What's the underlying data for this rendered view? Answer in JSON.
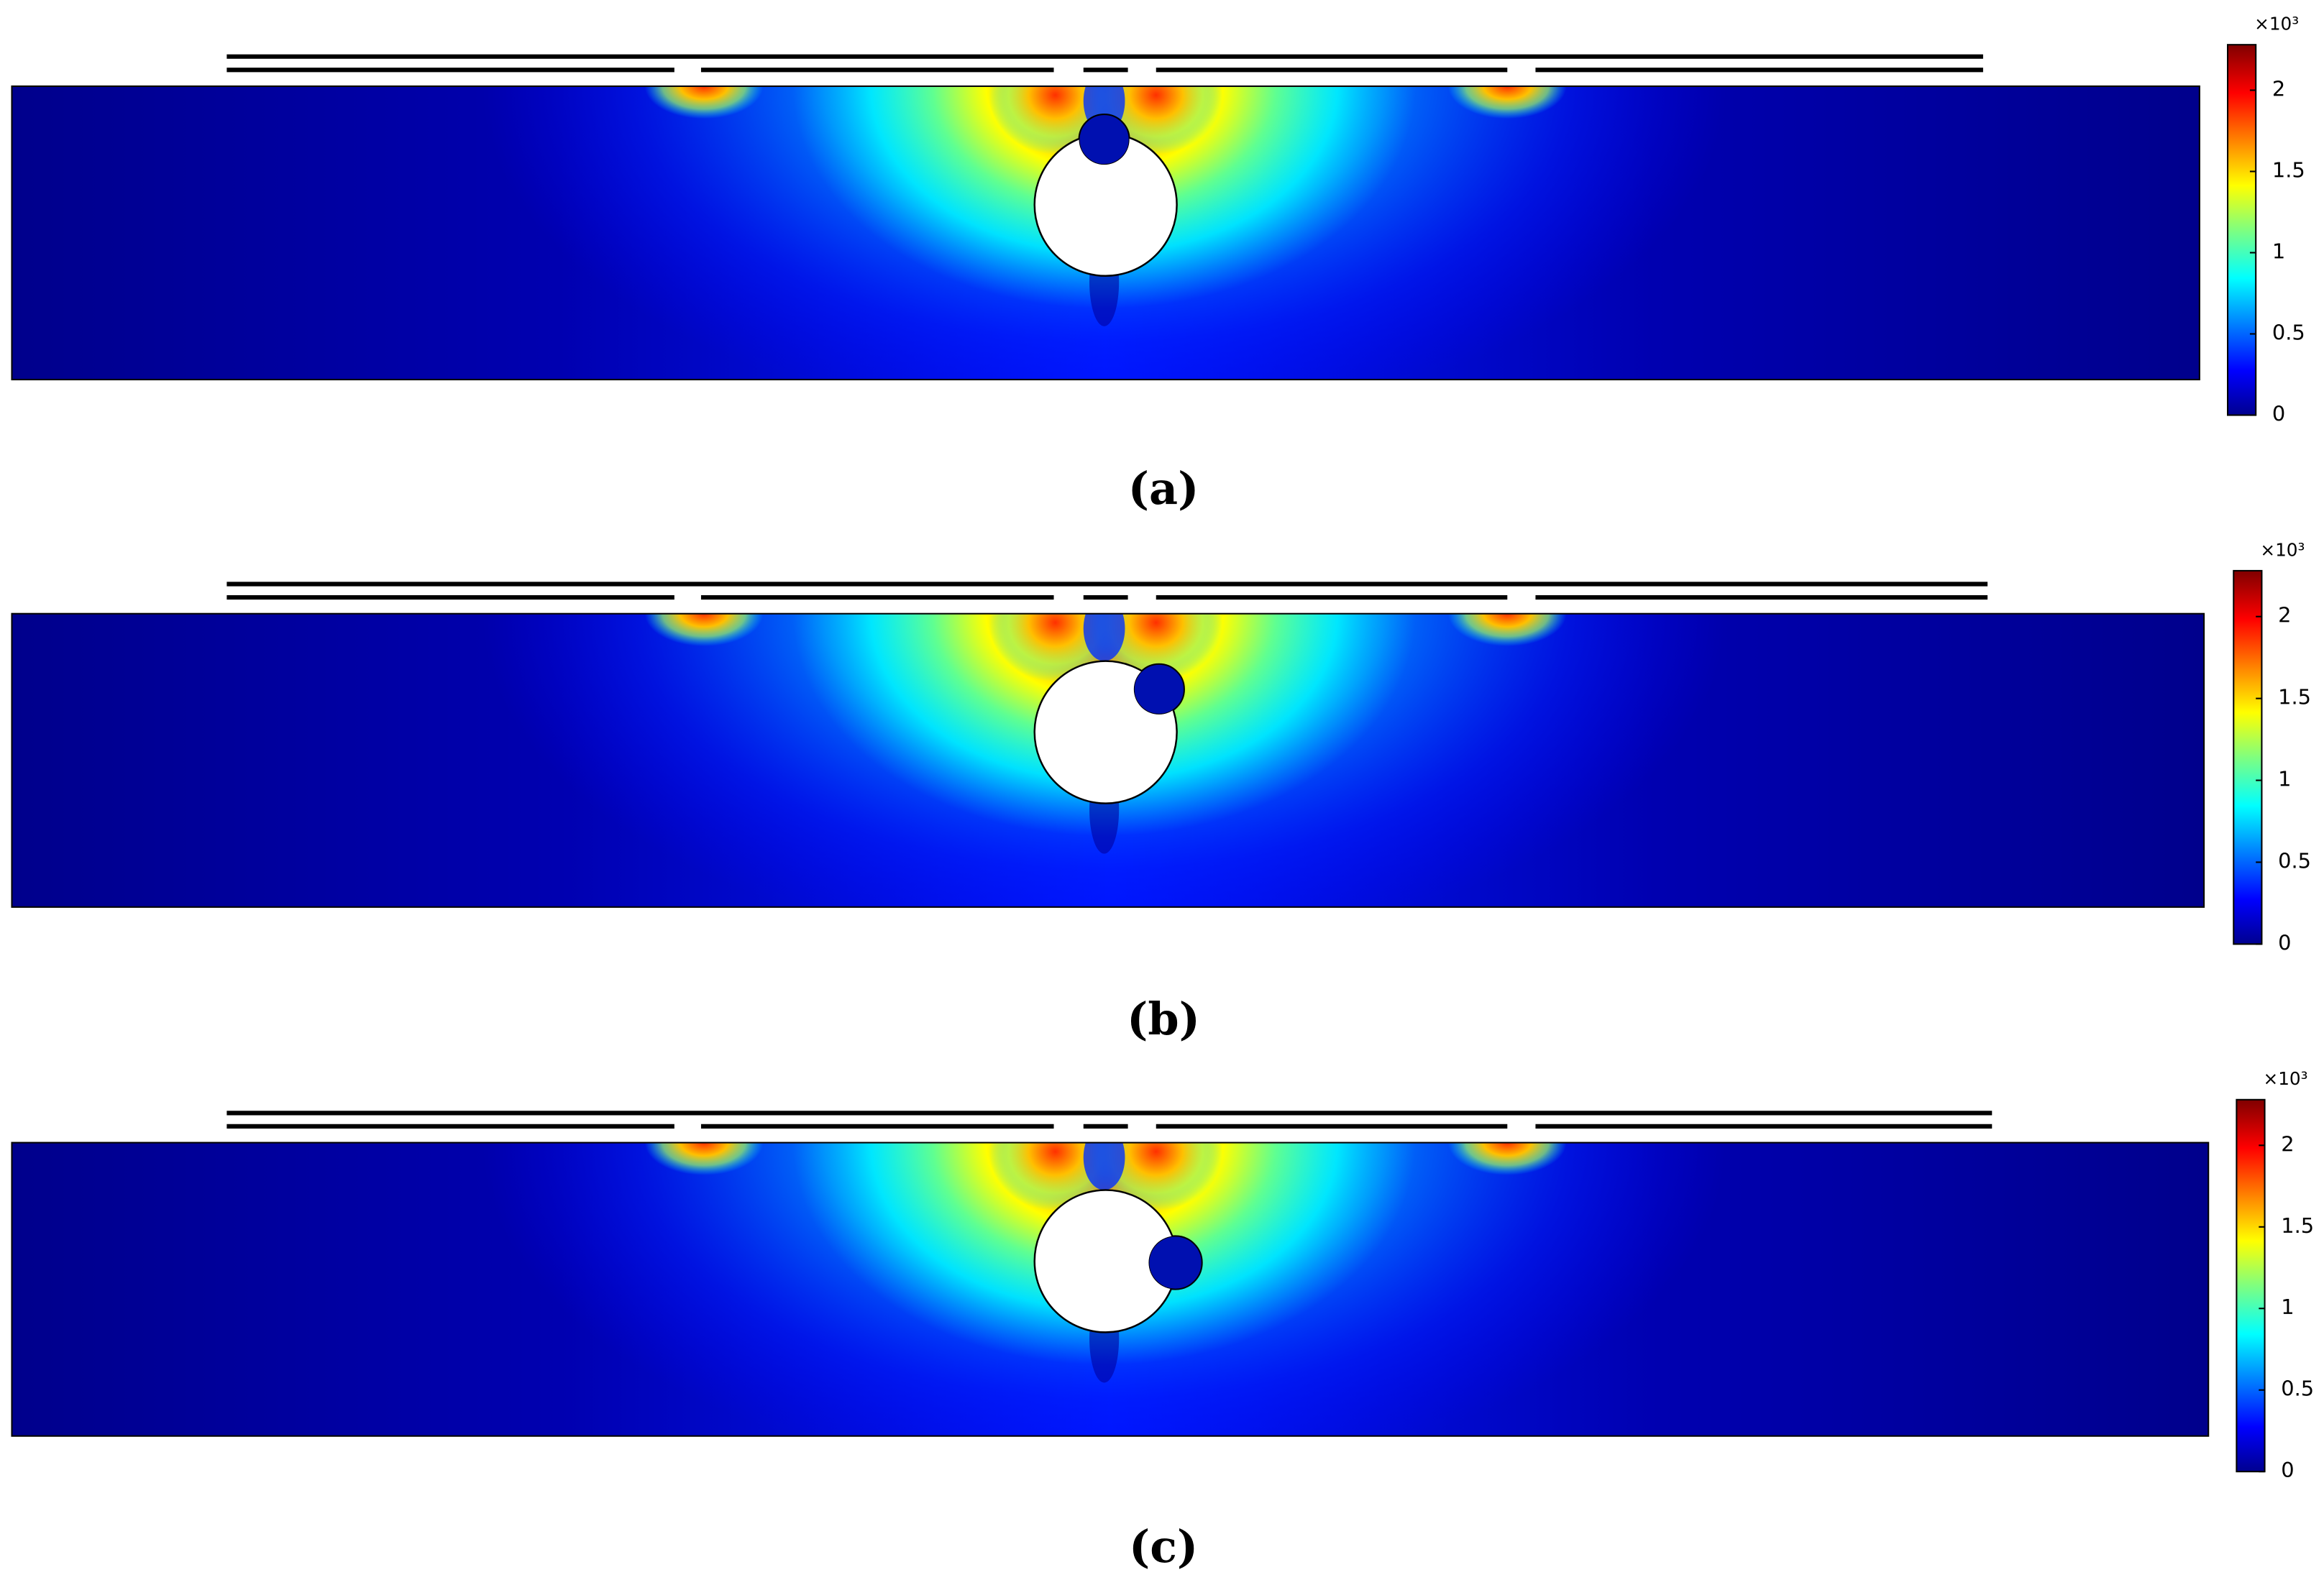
{
  "panels": [
    {
      "label": "(a)",
      "colorbar": {
        "multiplier": "×10³",
        "range": [
          0,
          2.28
        ],
        "ticks": [
          0,
          0.5,
          1,
          1.5,
          2
        ]
      }
    },
    {
      "label": "(b)",
      "colorbar": {
        "multiplier": "×10³",
        "range": [
          0,
          2.28
        ],
        "ticks": [
          0,
          0.5,
          1,
          1.5,
          2
        ]
      }
    },
    {
      "label": "(c)",
      "colorbar": {
        "multiplier": "×10³",
        "range": [
          0,
          2.28
        ],
        "ticks": [
          0,
          0.5,
          1,
          1.5,
          2
        ]
      }
    }
  ]
}
